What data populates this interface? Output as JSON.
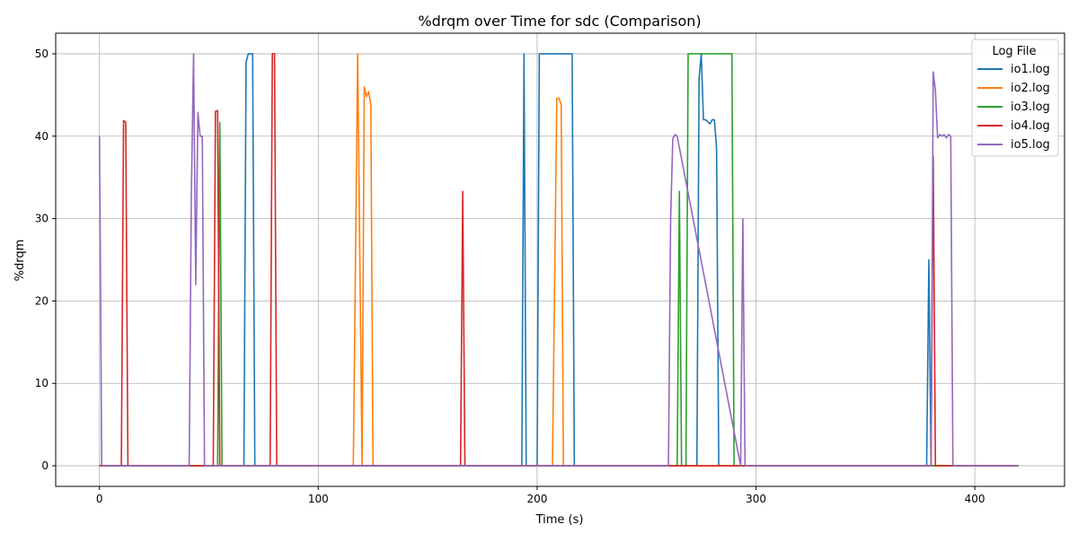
{
  "chart_data": {
    "type": "line",
    "title": "%drqm over Time for sdc (Comparison)",
    "xlabel": "Time (s)",
    "ylabel": "%drqm",
    "xlim": [
      -20,
      441
    ],
    "ylim": [
      -2.5,
      52.5
    ],
    "xticks": [
      0,
      100,
      200,
      300,
      400
    ],
    "yticks": [
      0,
      10,
      20,
      30,
      40,
      50
    ],
    "grid": true,
    "legend": {
      "title": "Log File",
      "placement": "top-right"
    },
    "series": [
      {
        "name": "io1.log",
        "color": "#1f77b4",
        "x": [
          0,
          66,
          67,
          68,
          69,
          70,
          71,
          193,
          194,
          195,
          200,
          201,
          202,
          215,
          216,
          217,
          273,
          274,
          275,
          276,
          277,
          279,
          280,
          281,
          282,
          283,
          378,
          379,
          380,
          420
        ],
        "y": [
          0,
          0,
          49,
          50,
          50,
          50,
          0,
          0,
          50,
          0,
          0,
          50,
          50,
          50,
          50,
          0,
          0,
          47,
          50,
          42,
          42,
          41.5,
          42,
          42,
          38.5,
          0,
          0,
          25,
          0,
          0
        ]
      },
      {
        "name": "io2.log",
        "color": "#ff7f0e",
        "x": [
          0,
          116,
          118,
          120,
          121,
          122,
          123,
          124,
          125,
          126,
          207,
          209,
          210,
          211,
          212,
          420
        ],
        "y": [
          0,
          0,
          50,
          0,
          46,
          44.8,
          45.4,
          43.8,
          0,
          0,
          0,
          44.6,
          44.6,
          43.8,
          0,
          0
        ],
        "comment": "renders as step-like segments; pre-116 values are 0"
      },
      {
        "name": "io3.log",
        "color": "#2ca02c",
        "x": [
          0,
          54,
          55,
          56,
          264,
          265,
          266,
          268,
          269,
          270,
          288,
          289,
          290,
          420
        ],
        "y": [
          0,
          0,
          41.7,
          0,
          0,
          33.3,
          0,
          0,
          50,
          50,
          50,
          50,
          0,
          0
        ]
      },
      {
        "name": "io4.log",
        "color": "#d62728",
        "x": [
          0,
          10,
          11,
          12,
          13,
          52,
          53,
          54,
          55,
          78,
          79,
          80,
          81,
          165,
          166,
          167,
          380,
          381,
          382,
          383,
          389,
          420
        ],
        "y": [
          0,
          0,
          41.9,
          41.7,
          0,
          0,
          43,
          43.1,
          0,
          0,
          50,
          50,
          0,
          0,
          33.3,
          0,
          0,
          37.5,
          0,
          0,
          0,
          0
        ]
      },
      {
        "name": "io5.log",
        "color": "#9467bd",
        "x": [
          0,
          0.5,
          1,
          2,
          41,
          42,
          43,
          44,
          45,
          46,
          47,
          48,
          260,
          261,
          262,
          263,
          264,
          293,
          294,
          295,
          379,
          380,
          381,
          382,
          383,
          384,
          385,
          386,
          387,
          388,
          389,
          390,
          420
        ],
        "y": [
          40,
          22,
          0,
          0,
          0,
          33,
          50,
          22,
          42.9,
          40,
          40,
          0,
          0,
          30,
          39.7,
          40.2,
          40,
          0,
          30,
          0,
          0,
          0,
          47.8,
          45.5,
          39.8,
          40.2,
          40,
          40.2,
          39.8,
          40.2,
          40,
          0,
          0
        ]
      }
    ]
  }
}
